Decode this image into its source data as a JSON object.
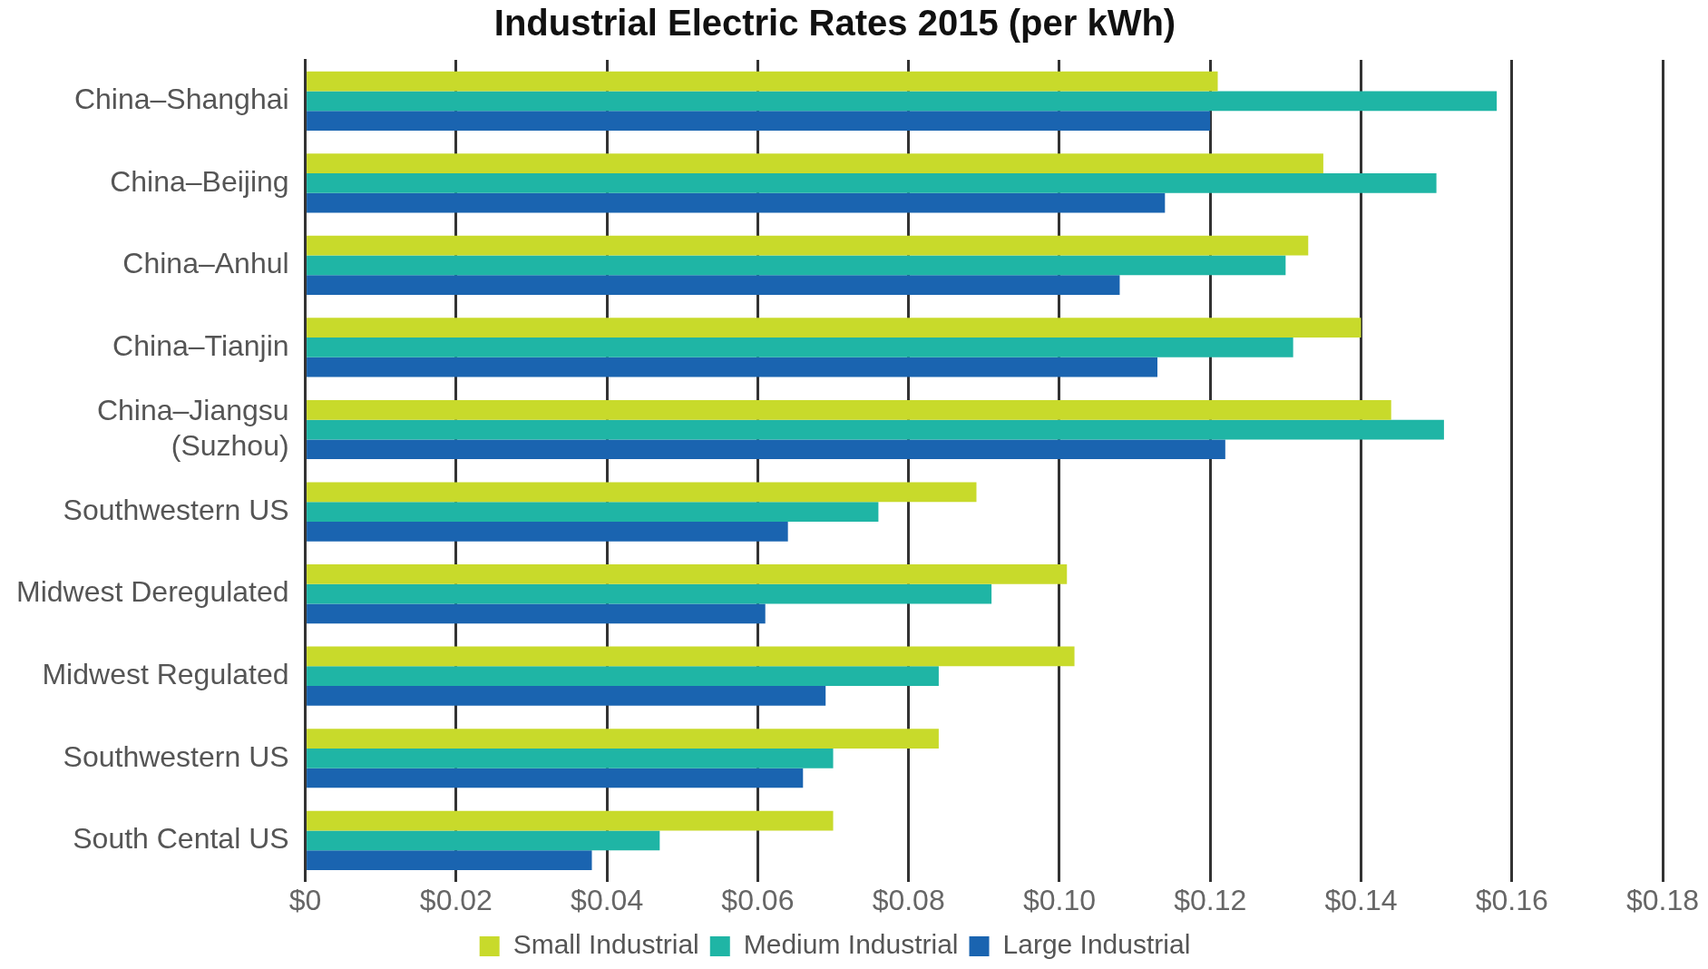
{
  "chart_data": {
    "type": "bar",
    "orientation": "horizontal",
    "title": "Industrial Electric Rates 2015 (per kWh)",
    "categories": [
      "China–Shanghai",
      "China–Beijing",
      "China–Anhul",
      "China–Tianjin",
      "China–Jiangsu\n(Suzhou)",
      "Southwestern US",
      "Midwest Deregulated",
      "Midwest Regulated",
      "Southwestern US",
      "South Cental US"
    ],
    "series": [
      {
        "name": "Small Industrial",
        "color": "#c8da2b",
        "values": [
          0.121,
          0.135,
          0.133,
          0.14,
          0.144,
          0.089,
          0.101,
          0.102,
          0.084,
          0.07
        ]
      },
      {
        "name": "Medium Industrial",
        "color": "#1fb5a5",
        "values": [
          0.158,
          0.15,
          0.13,
          0.131,
          0.151,
          0.076,
          0.091,
          0.084,
          0.07,
          0.047
        ]
      },
      {
        "name": "Large Industrial",
        "color": "#1a64b0",
        "values": [
          0.12,
          0.114,
          0.108,
          0.113,
          0.122,
          0.064,
          0.061,
          0.069,
          0.066,
          0.038
        ]
      }
    ],
    "xlim": [
      0,
      0.18
    ],
    "xticks": [
      {
        "value": 0,
        "label": "$0"
      },
      {
        "value": 0.02,
        "label": "$0.02"
      },
      {
        "value": 0.04,
        "label": "$0.04"
      },
      {
        "value": 0.06,
        "label": "$0.06"
      },
      {
        "value": 0.08,
        "label": "$0.08"
      },
      {
        "value": 0.1,
        "label": "$0.10"
      },
      {
        "value": 0.12,
        "label": "$0.12"
      },
      {
        "value": 0.14,
        "label": "$0.14"
      },
      {
        "value": 0.16,
        "label": "$0.16"
      },
      {
        "value": 0.18,
        "label": "$0.18"
      }
    ],
    "grid": "x",
    "legend": "bottom"
  }
}
